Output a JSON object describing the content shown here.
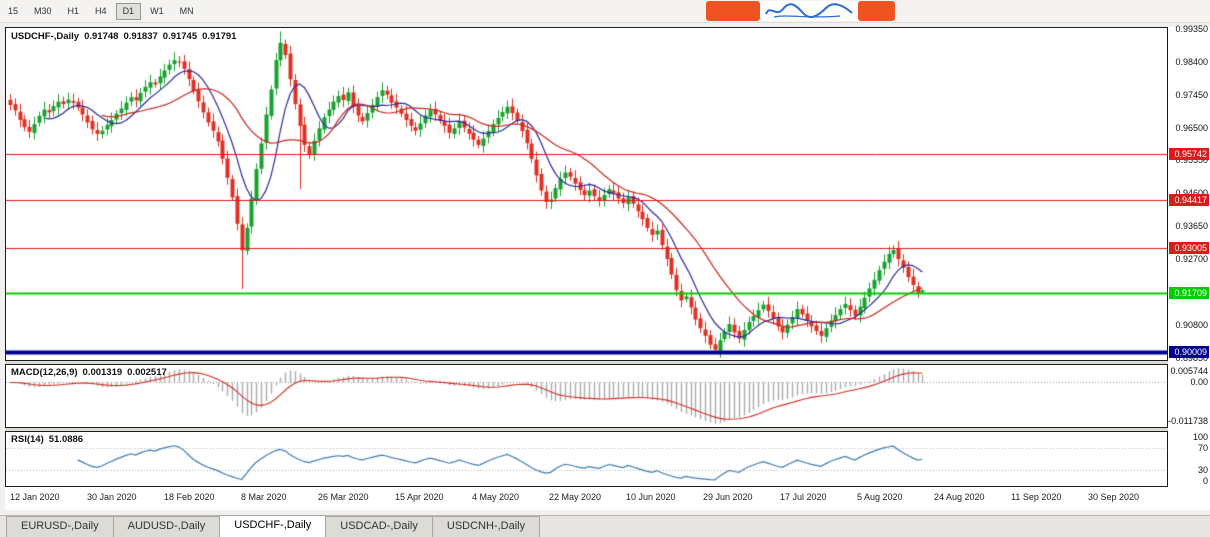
{
  "toolbar": {
    "timeframes": [
      "15",
      "M30",
      "H1",
      "H4",
      "D1",
      "W1",
      "MN"
    ],
    "active_timeframe": "D1"
  },
  "watermark": {
    "block_color": "#ee5422",
    "script_color": "#2e6bd6"
  },
  "chart": {
    "info_bar": {
      "symbol": "USDCHF-,Daily",
      "open": "0.91748",
      "high": "0.91837",
      "low": "0.91745",
      "close": "0.91791"
    },
    "price_axis_labels": [
      "0.99350",
      "0.98400",
      "0.97450",
      "0.96500",
      "0.95550",
      "0.94600",
      "0.93650",
      "0.92700",
      "0.91750",
      "0.90800",
      "0.89850"
    ],
    "time_axis_labels": [
      "12 Jan 2020",
      "30 Jan 2020",
      "18 Feb 2020",
      "8 Mar 2020",
      "26 Mar 2020",
      "15 Apr 2020",
      "4 May 2020",
      "22 May 2020",
      "10 Jun 2020",
      "29 Jun 2020",
      "17 Jul 2020",
      "5 Aug 2020",
      "24 Aug 2020",
      "11 Sep 2020",
      "30 Sep 2020"
    ],
    "macd_label": {
      "name": "MACD(12,26,9)",
      "main": "0.001319",
      "signal": "0.002517",
      "axis_top": "0.005744",
      "axis_zero": "0.00",
      "axis_bottom": "-0.011738"
    },
    "rsi_label": {
      "name": "RSI(14)",
      "value": "51.0886",
      "axis": [
        "100",
        "70",
        "30",
        "0"
      ]
    }
  },
  "chart_data": {
    "type": "candlestick",
    "symbol": "USDCHF",
    "period": "Daily",
    "first_open": 0.973,
    "closes": [
      0.9715,
      0.97,
      0.9672,
      0.9651,
      0.9638,
      0.966,
      0.9684,
      0.9702,
      0.9694,
      0.9712,
      0.9725,
      0.9718,
      0.9731,
      0.9722,
      0.9708,
      0.9688,
      0.9665,
      0.9645,
      0.9632,
      0.9641,
      0.9658,
      0.9672,
      0.969,
      0.9705,
      0.9722,
      0.9738,
      0.9729,
      0.975,
      0.9768,
      0.9781,
      0.9775,
      0.9798,
      0.9815,
      0.9832,
      0.9845,
      0.9838,
      0.982,
      0.979,
      0.9755,
      0.9726,
      0.9694,
      0.9665,
      0.9641,
      0.961,
      0.956,
      0.9505,
      0.9448,
      0.9372,
      0.9295,
      0.936,
      0.9445,
      0.953,
      0.9604,
      0.9688,
      0.976,
      0.9845,
      0.9895,
      0.986,
      0.979,
      0.9718,
      0.9655,
      0.96,
      0.9571,
      0.9612,
      0.9648,
      0.968,
      0.9702,
      0.9725,
      0.9741,
      0.973,
      0.9752,
      0.971,
      0.9685,
      0.9668,
      0.9692,
      0.9715,
      0.9738,
      0.9758,
      0.9745,
      0.9722,
      0.9708,
      0.969,
      0.9672,
      0.9655,
      0.9641,
      0.9662,
      0.9685,
      0.97,
      0.9688,
      0.967,
      0.9655,
      0.9635,
      0.9648,
      0.9668,
      0.965,
      0.9632,
      0.9615,
      0.96,
      0.9618,
      0.964,
      0.966,
      0.9678,
      0.9695,
      0.971,
      0.9692,
      0.967,
      0.964,
      0.9605,
      0.956,
      0.9512,
      0.9468,
      0.9435,
      0.9442,
      0.9475,
      0.9502,
      0.952,
      0.9508,
      0.9488,
      0.947,
      0.9455,
      0.9468,
      0.9452,
      0.944,
      0.9455,
      0.9472,
      0.946,
      0.9445,
      0.9432,
      0.9448,
      0.943,
      0.9408,
      0.9385,
      0.936,
      0.934,
      0.9352,
      0.931,
      0.927,
      0.9225,
      0.918,
      0.915,
      0.9162,
      0.913,
      0.9095,
      0.907,
      0.9048,
      0.9022,
      0.9008,
      0.9035,
      0.906,
      0.9082,
      0.9058,
      0.904,
      0.9065,
      0.9088,
      0.9105,
      0.9122,
      0.9138,
      0.912,
      0.9098,
      0.9075,
      0.9058,
      0.908,
      0.9102,
      0.9125,
      0.911,
      0.9092,
      0.9075,
      0.9062,
      0.9048,
      0.907,
      0.9092,
      0.9108,
      0.9125,
      0.914,
      0.9122,
      0.9105,
      0.9132,
      0.9158,
      0.9185,
      0.921,
      0.9238,
      0.9262,
      0.9285,
      0.9296,
      0.927,
      0.9245,
      0.9218,
      0.9195,
      0.917,
      0.91791
    ],
    "wick_overrides": {
      "48": {
        "low": 0.9183
      },
      "56": {
        "high": 0.9928
      },
      "60": {
        "low": 0.9472
      },
      "111": {
        "low": 0.9415
      },
      "146": {
        "low": 0.8998
      },
      "183": {
        "high": 0.931
      },
      "189": {
        "high": 0.91837,
        "low": 0.917
      }
    },
    "price_range": {
      "max": 0.9938,
      "min": 0.8978
    },
    "bars_visible_fraction": 0.79,
    "up_color": "#18a32f",
    "down_color": "#e03024",
    "overlays": [
      {
        "name": "ma-fast",
        "period": 8,
        "color": "#2b2b9e"
      },
      {
        "name": "ma-slow",
        "period": 20,
        "color": "#c9281f"
      }
    ],
    "hlines": [
      {
        "price": 0.95742,
        "label": "0.95742",
        "color": "#dd1a1a",
        "thickness": 1
      },
      {
        "price": 0.94417,
        "label": "0.94417",
        "color": "#dd1a1a",
        "thickness": 1
      },
      {
        "price": 0.93005,
        "label": "0.93005",
        "color": "#dd1a1a",
        "thickness": 1
      },
      {
        "price": 0.91709,
        "label": "0.91709",
        "color": "#00ce00",
        "thickness": 2
      },
      {
        "price": 0.90009,
        "label": "0.90009",
        "color": "#000090",
        "thickness": 4
      }
    ],
    "indicators": {
      "macd": {
        "fast": 12,
        "slow": 26,
        "signal": 9,
        "histogram_color": "#ababab",
        "signal_color": "#d32f23",
        "zero_line_color": "#999999"
      },
      "rsi": {
        "period": 14,
        "color": "#3f7cb1",
        "levels": [
          70,
          30
        ],
        "level_color": "#b0b0b0"
      }
    }
  },
  "tabs": {
    "items": [
      "EURUSD-,Daily",
      "AUDUSD-,Daily",
      "USDCHF-,Daily",
      "USDCAD-,Daily",
      "USDCNH-,Daily"
    ],
    "active": "USDCHF-,Daily"
  }
}
